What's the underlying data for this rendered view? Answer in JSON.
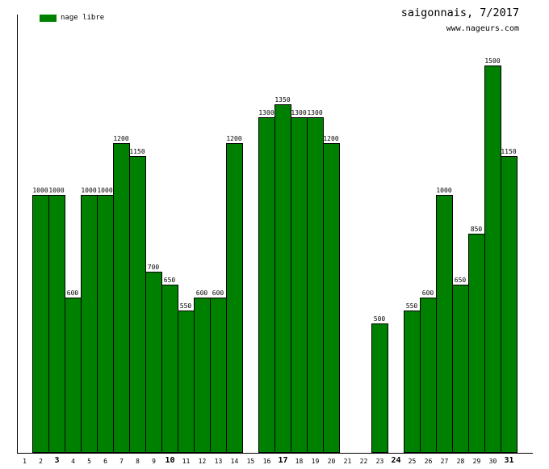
{
  "legend": {
    "label": "nage libre",
    "swatch_color": "#008000"
  },
  "header": {
    "title": "saigonnais, 7/2017",
    "site": "www.nageurs.com"
  },
  "chart_data": {
    "type": "bar",
    "title": "saigonnais, 7/2017",
    "subtitle": "www.nageurs.com",
    "series_name": "nage libre",
    "categories": [
      1,
      2,
      3,
      4,
      5,
      6,
      7,
      8,
      9,
      10,
      11,
      12,
      13,
      14,
      15,
      16,
      17,
      18,
      19,
      20,
      21,
      22,
      23,
      24,
      25,
      26,
      27,
      28,
      29,
      30,
      31
    ],
    "values": [
      null,
      1000,
      1000,
      600,
      1000,
      1000,
      1200,
      1150,
      700,
      650,
      550,
      600,
      600,
      1200,
      null,
      1300,
      1350,
      1300,
      1300,
      1200,
      null,
      null,
      500,
      null,
      550,
      600,
      1000,
      650,
      850,
      1500,
      1150
    ],
    "bar_color": "#008000",
    "bar_border_color": "#000000",
    "bold_x_ticks": [
      3,
      10,
      17,
      24,
      31
    ],
    "xlabel": "",
    "ylabel": "",
    "ylim": [
      0,
      1695
    ],
    "grid": false,
    "y_axis_labels": false,
    "data_labels": true,
    "legend_position": "top-left"
  }
}
